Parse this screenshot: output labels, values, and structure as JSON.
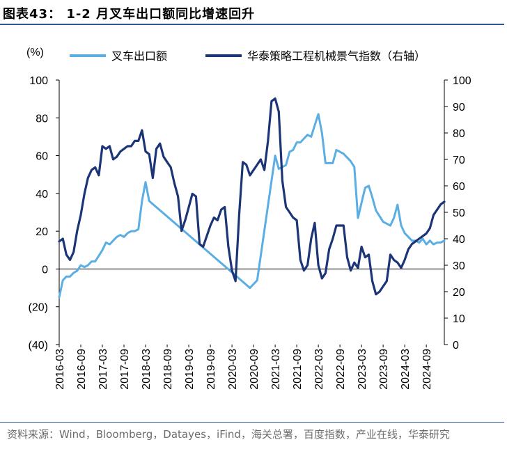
{
  "figure_title": "图表43： 1-2 月叉车出口额同比增速回升",
  "source_note": "资料来源：Wind，Bloomberg，Datayes，iFind，海关总署，百度指数，产业在线，华泰研究",
  "chart_data": {
    "type": "line",
    "title": "",
    "left_axis": {
      "label": "(%)",
      "min": -40,
      "max": 100,
      "ticks": [
        -40,
        -20,
        0,
        20,
        40,
        60,
        80,
        100
      ],
      "tick_labels": [
        "(40)",
        "(20)",
        "0",
        "20",
        "40",
        "60",
        "80",
        "100"
      ]
    },
    "right_axis": {
      "label": "",
      "min": 0,
      "max": 100,
      "ticks": [
        0,
        10,
        20,
        30,
        40,
        50,
        60,
        70,
        80,
        90,
        100
      ],
      "tick_labels": [
        "0",
        "10",
        "20",
        "30",
        "40",
        "50",
        "60",
        "70",
        "80",
        "90",
        "100"
      ]
    },
    "x_tick_labels": [
      "2016-03",
      "2016-09",
      "2017-03",
      "2017-09",
      "2018-03",
      "2018-09",
      "2019-03",
      "2019-09",
      "2020-03",
      "2020-09",
      "2021-03",
      "2021-09",
      "2022-03",
      "2022-09",
      "2023-03",
      "2023-09",
      "2024-03",
      "2024-09"
    ],
    "legend_position": "top",
    "grid": false,
    "colors": {
      "series1": "#5aaee3",
      "series2": "#1b3577",
      "axis": "#000000",
      "title_rule": "#2e5597"
    },
    "series": [
      {
        "name": "叉车出口额",
        "axis": "left",
        "points": [
          [
            "2016-03",
            -15
          ],
          [
            "2016-04",
            -6
          ],
          [
            "2016-05",
            -4
          ],
          [
            "2016-06",
            -4
          ],
          [
            "2016-07",
            -2
          ],
          [
            "2016-08",
            -1
          ],
          [
            "2016-09",
            2
          ],
          [
            "2016-10",
            1
          ],
          [
            "2016-11",
            2
          ],
          [
            "2016-12",
            4
          ],
          [
            "2017-01",
            4
          ],
          [
            "2017-02",
            7
          ],
          [
            "2017-03",
            10
          ],
          [
            "2017-04",
            14
          ],
          [
            "2017-05",
            13
          ],
          [
            "2017-06",
            15
          ],
          [
            "2017-07",
            17
          ],
          [
            "2017-08",
            18
          ],
          [
            "2017-09",
            17
          ],
          [
            "2017-10",
            19
          ],
          [
            "2017-11",
            20
          ],
          [
            "2017-12",
            20
          ],
          [
            "2018-01",
            21
          ],
          [
            "2018-02",
            36
          ],
          [
            "2018-03",
            46
          ],
          [
            "2018-04",
            36
          ],
          [
            "2020-08",
            -10
          ],
          [
            "2020-09",
            -8
          ],
          [
            "2020-10",
            -6
          ],
          [
            "2021-03",
            60
          ],
          [
            "2021-04",
            53
          ],
          [
            "2021-05",
            54
          ],
          [
            "2021-06",
            55
          ],
          [
            "2021-07",
            62
          ],
          [
            "2021-08",
            63
          ],
          [
            "2021-09",
            67
          ],
          [
            "2021-10",
            67
          ],
          [
            "2021-11",
            69
          ],
          [
            "2021-12",
            71
          ],
          [
            "2022-01",
            70
          ],
          [
            "2022-02",
            76
          ],
          [
            "2022-03",
            82
          ],
          [
            "2022-04",
            72
          ],
          [
            "2022-05",
            56
          ],
          [
            "2022-06",
            56
          ],
          [
            "2022-07",
            56
          ],
          [
            "2022-08",
            63
          ],
          [
            "2022-09",
            62
          ],
          [
            "2022-10",
            61
          ],
          [
            "2022-11",
            59
          ],
          [
            "2022-12",
            57
          ],
          [
            "2023-01",
            54
          ],
          [
            "2023-02",
            27
          ],
          [
            "2023-03",
            35
          ],
          [
            "2023-04",
            43
          ],
          [
            "2023-05",
            44
          ],
          [
            "2023-06",
            38
          ],
          [
            "2023-07",
            31
          ],
          [
            "2023-08",
            28
          ],
          [
            "2023-09",
            25
          ],
          [
            "2023-10",
            24
          ],
          [
            "2023-11",
            23
          ],
          [
            "2023-12",
            27
          ],
          [
            "2024-01",
            34
          ],
          [
            "2024-02",
            23
          ],
          [
            "2024-03",
            19
          ],
          [
            "2024-04",
            17
          ],
          [
            "2024-05",
            15
          ],
          [
            "2024-06",
            15
          ],
          [
            "2024-07",
            14
          ],
          [
            "2024-08",
            16
          ],
          [
            "2024-09",
            13
          ],
          [
            "2024-10",
            15
          ],
          [
            "2024-11",
            13
          ],
          [
            "2024-12",
            14
          ],
          [
            "2025-01",
            14
          ],
          [
            "2025-02",
            15
          ]
        ]
      },
      {
        "name": "华泰策略工程机械景气指数（右轴）",
        "axis": "right",
        "points": [
          [
            "2016-03",
            39
          ],
          [
            "2016-04",
            40
          ],
          [
            "2016-05",
            34
          ],
          [
            "2016-06",
            32
          ],
          [
            "2016-07",
            35
          ],
          [
            "2016-08",
            43
          ],
          [
            "2016-09",
            49
          ],
          [
            "2016-10",
            57
          ],
          [
            "2016-11",
            63
          ],
          [
            "2016-12",
            66
          ],
          [
            "2017-01",
            67
          ],
          [
            "2017-02",
            64
          ],
          [
            "2017-03",
            75
          ],
          [
            "2017-04",
            74
          ],
          [
            "2017-05",
            75
          ],
          [
            "2017-06",
            70
          ],
          [
            "2017-07",
            71
          ],
          [
            "2017-08",
            73
          ],
          [
            "2017-09",
            74
          ],
          [
            "2017-10",
            75
          ],
          [
            "2017-11",
            75
          ],
          [
            "2017-12",
            77
          ],
          [
            "2018-01",
            77
          ],
          [
            "2018-02",
            81
          ],
          [
            "2018-03",
            73
          ],
          [
            "2018-04",
            72
          ],
          [
            "2018-05",
            63
          ],
          [
            "2018-06",
            74
          ],
          [
            "2018-07",
            76
          ],
          [
            "2018-08",
            71
          ],
          [
            "2018-09",
            69
          ],
          [
            "2018-10",
            67
          ],
          [
            "2018-11",
            61
          ],
          [
            "2018-12",
            56
          ],
          [
            "2019-01",
            43
          ],
          [
            "2019-02",
            47
          ],
          [
            "2019-03",
            52
          ],
          [
            "2019-04",
            57
          ],
          [
            "2019-05",
            56
          ],
          [
            "2019-06",
            38
          ],
          [
            "2019-07",
            37
          ],
          [
            "2019-08",
            41
          ],
          [
            "2019-09",
            45
          ],
          [
            "2019-10",
            48
          ],
          [
            "2019-11",
            47
          ],
          [
            "2019-12",
            51
          ],
          [
            "2020-01",
            52
          ],
          [
            "2020-02",
            37
          ],
          [
            "2020-03",
            28
          ],
          [
            "2020-04",
            24
          ],
          [
            "2020-05",
            49
          ],
          [
            "2020-06",
            69
          ],
          [
            "2020-07",
            68
          ],
          [
            "2020-08",
            64
          ],
          [
            "2020-09",
            66
          ],
          [
            "2020-10",
            68
          ],
          [
            "2020-11",
            70
          ],
          [
            "2020-12",
            66
          ],
          [
            "2021-01",
            77
          ],
          [
            "2021-02",
            92
          ],
          [
            "2021-03",
            93
          ],
          [
            "2021-04",
            88
          ],
          [
            "2021-05",
            62
          ],
          [
            "2021-06",
            52
          ],
          [
            "2021-07",
            50
          ],
          [
            "2021-08",
            48
          ],
          [
            "2021-09",
            47
          ],
          [
            "2021-10",
            32
          ],
          [
            "2021-11",
            28
          ],
          [
            "2021-12",
            30
          ],
          [
            "2022-01",
            40
          ],
          [
            "2022-02",
            46
          ],
          [
            "2022-03",
            30
          ],
          [
            "2022-04",
            25
          ],
          [
            "2022-05",
            27
          ],
          [
            "2022-06",
            36
          ],
          [
            "2022-07",
            40
          ],
          [
            "2022-08",
            45
          ],
          [
            "2022-09",
            45
          ],
          [
            "2022-10",
            45
          ],
          [
            "2022-11",
            33
          ],
          [
            "2022-12",
            28
          ],
          [
            "2023-01",
            31
          ],
          [
            "2023-02",
            29
          ],
          [
            "2023-03",
            37
          ],
          [
            "2023-04",
            33
          ],
          [
            "2023-05",
            34
          ],
          [
            "2023-06",
            24
          ],
          [
            "2023-07",
            19
          ],
          [
            "2023-08",
            20
          ],
          [
            "2023-09",
            22
          ],
          [
            "2023-10",
            24
          ],
          [
            "2023-11",
            34
          ],
          [
            "2023-12",
            32
          ],
          [
            "2024-01",
            31
          ],
          [
            "2024-02",
            29
          ],
          [
            "2024-03",
            32
          ],
          [
            "2024-04",
            36
          ],
          [
            "2024-05",
            38
          ],
          [
            "2024-06",
            39
          ],
          [
            "2024-07",
            40
          ],
          [
            "2024-08",
            41
          ],
          [
            "2024-09",
            42
          ],
          [
            "2024-10",
            44
          ],
          [
            "2024-11",
            49
          ],
          [
            "2024-12",
            51
          ],
          [
            "2025-01",
            53
          ],
          [
            "2025-02",
            54
          ]
        ]
      }
    ]
  }
}
